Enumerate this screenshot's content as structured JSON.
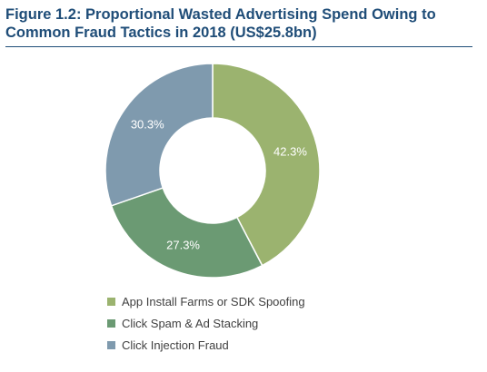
{
  "chart_data": {
    "type": "pie",
    "variant": "donut",
    "title": "Figure 1.2: Proportional Wasted Advertising Spend Owing to Common Fraud Tactics in 2018 (US$25.8bn)",
    "slices": [
      {
        "label": "App Install Farms or SDK Spoofing",
        "value": 42.3,
        "display": "42.3%",
        "color": "#9bb36f"
      },
      {
        "label": "Click Spam & Ad Stacking",
        "value": 27.3,
        "display": "27.3%",
        "color": "#6b9a73"
      },
      {
        "label": "Click Injection Fraud",
        "value": 30.3,
        "display": "30.3%",
        "color": "#7f9aae"
      }
    ],
    "legend_position": "bottom",
    "value_label_color": "#ffffff"
  }
}
